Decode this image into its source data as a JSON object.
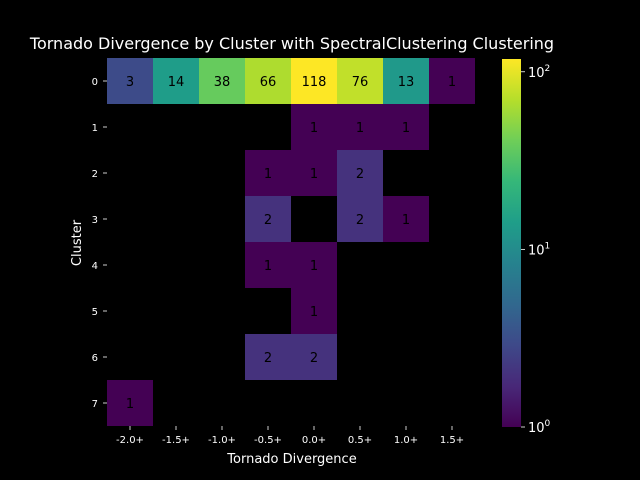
{
  "chart_data": {
    "type": "heatmap",
    "title": "Tornado Divergence by Cluster with SpectralClustering Clustering",
    "xlabel": "Tornado Divergence",
    "ylabel": "Cluster",
    "x_categories": [
      "-2.0+",
      "-1.5+",
      "-1.0+",
      "-0.5+",
      "0.0+",
      "0.5+",
      "1.0+",
      "1.5+"
    ],
    "y_categories": [
      "0",
      "1",
      "2",
      "3",
      "4",
      "5",
      "6",
      "7"
    ],
    "values": [
      [
        3,
        14,
        38,
        66,
        118,
        76,
        13,
        1
      ],
      [
        0,
        0,
        0,
        0,
        1,
        1,
        1,
        0
      ],
      [
        0,
        0,
        0,
        1,
        1,
        2,
        0,
        0
      ],
      [
        0,
        0,
        0,
        2,
        0,
        2,
        1,
        0
      ],
      [
        0,
        0,
        0,
        1,
        1,
        0,
        0,
        0
      ],
      [
        0,
        0,
        0,
        0,
        1,
        0,
        0,
        0
      ],
      [
        0,
        0,
        0,
        2,
        2,
        0,
        0,
        0
      ],
      [
        1,
        0,
        0,
        0,
        0,
        0,
        0,
        0
      ]
    ],
    "colormap": "viridis",
    "color_scale": "log",
    "color_range": [
      1,
      118
    ],
    "empty_cell_color": "#000000",
    "colorbar": {
      "placement": "right",
      "ticks": [
        {
          "value": 1,
          "base": "10",
          "exp": "0"
        },
        {
          "value": 10,
          "base": "10",
          "exp": "1"
        },
        {
          "value": 100,
          "base": "10",
          "exp": "2"
        }
      ]
    },
    "grid": false,
    "legend": "none"
  }
}
